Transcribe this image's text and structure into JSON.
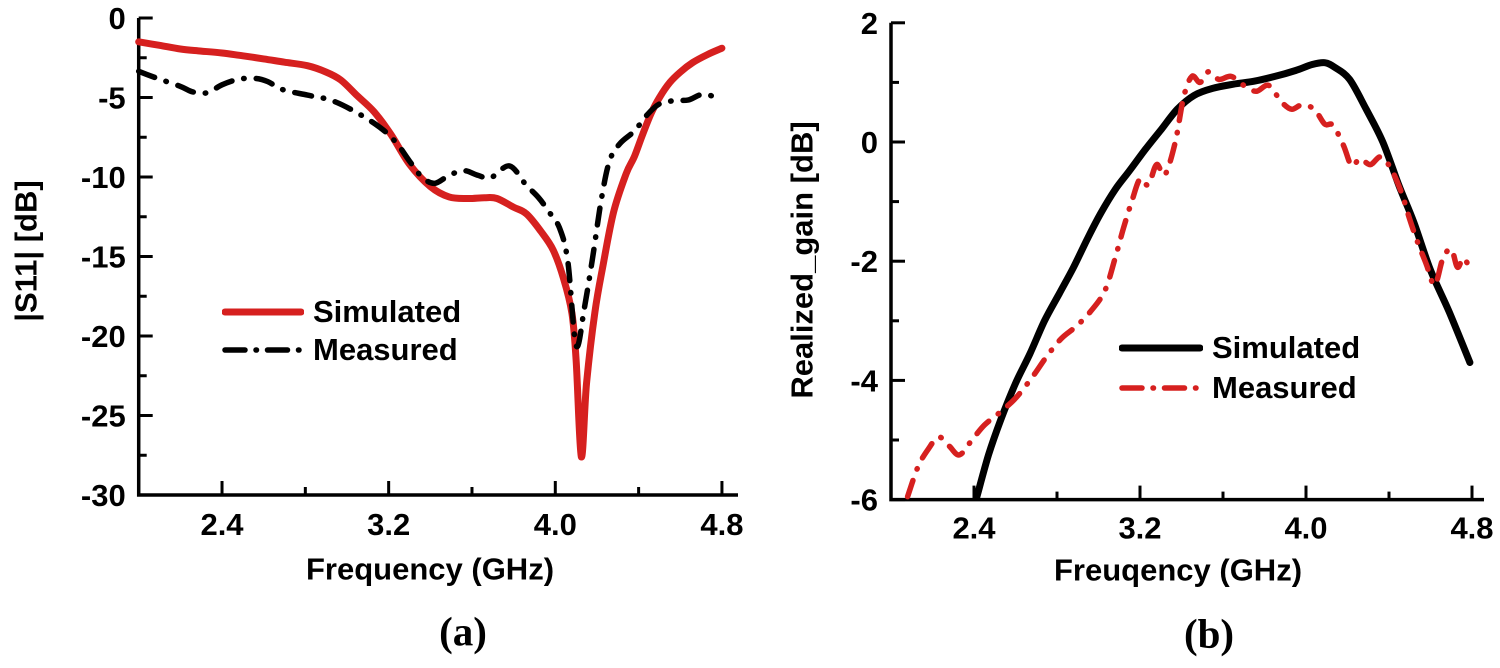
{
  "figure": {
    "background": "#ffffff",
    "caption_a": "(a)",
    "caption_b": "(b)"
  },
  "chart_data": [
    {
      "id": "a",
      "type": "line",
      "caption": "(a)",
      "title": "",
      "xlabel": "Frequency (GHz)",
      "ylabel": "|S11| [dB]",
      "xlim": [
        2.0,
        4.8
      ],
      "ylim": [
        -30,
        0
      ],
      "grid": false,
      "legend_position": "inside-center-left",
      "xticks": {
        "major": [
          2.4,
          3.2,
          4.0,
          4.8
        ],
        "labels": [
          "2.4",
          "3.2",
          "4.0",
          "4.8"
        ],
        "minor": [
          2.8,
          3.6,
          4.4
        ]
      },
      "yticks": {
        "major": [
          0,
          -5,
          -10,
          -15,
          -20,
          -25,
          -30
        ],
        "labels": [
          "0",
          "-5",
          "-10",
          "-15",
          "-20",
          "-25",
          "-30"
        ],
        "minor": [
          -2.5,
          -7.5,
          -12.5,
          -17.5,
          -22.5,
          -27.5
        ]
      },
      "series": [
        {
          "name": "Simulated",
          "color": "#d6201f",
          "line_style": "solid",
          "line_width": 7,
          "points": [
            [
              2.0,
              -1.5
            ],
            [
              2.1,
              -1.72
            ],
            [
              2.2,
              -1.95
            ],
            [
              2.3,
              -2.08
            ],
            [
              2.4,
              -2.2
            ],
            [
              2.5,
              -2.38
            ],
            [
              2.6,
              -2.57
            ],
            [
              2.7,
              -2.78
            ],
            [
              2.81,
              -3.0
            ],
            [
              2.9,
              -3.4
            ],
            [
              2.97,
              -3.9
            ],
            [
              3.05,
              -4.9
            ],
            [
              3.13,
              -5.9
            ],
            [
              3.21,
              -7.3
            ],
            [
              3.3,
              -9.2
            ],
            [
              3.4,
              -10.6
            ],
            [
              3.49,
              -11.25
            ],
            [
              3.58,
              -11.35
            ],
            [
              3.66,
              -11.3
            ],
            [
              3.72,
              -11.35
            ],
            [
              3.8,
              -11.9
            ],
            [
              3.86,
              -12.3
            ],
            [
              3.93,
              -13.4
            ],
            [
              3.99,
              -14.6
            ],
            [
              4.04,
              -16.4
            ],
            [
              4.08,
              -18.6
            ],
            [
              4.1,
              -21.5
            ],
            [
              4.125,
              -27.6
            ],
            [
              4.15,
              -23.0
            ],
            [
              4.19,
              -18.5
            ],
            [
              4.23,
              -15.5
            ],
            [
              4.28,
              -12.2
            ],
            [
              4.34,
              -9.8
            ],
            [
              4.38,
              -8.7
            ],
            [
              4.42,
              -7.3
            ],
            [
              4.46,
              -6.0
            ],
            [
              4.5,
              -5.0
            ],
            [
              4.55,
              -4.05
            ],
            [
              4.6,
              -3.4
            ],
            [
              4.66,
              -2.8
            ],
            [
              4.73,
              -2.3
            ],
            [
              4.8,
              -1.9
            ]
          ]
        },
        {
          "name": "Measured",
          "color": "#000000",
          "line_style": "dashdot",
          "line_width": 5.5,
          "points": [
            [
              2.0,
              -3.35
            ],
            [
              2.09,
              -3.8
            ],
            [
              2.2,
              -4.3
            ],
            [
              2.26,
              -4.65
            ],
            [
              2.33,
              -4.7
            ],
            [
              2.4,
              -4.2
            ],
            [
              2.48,
              -3.85
            ],
            [
              2.56,
              -3.8
            ],
            [
              2.62,
              -4.0
            ],
            [
              2.69,
              -4.5
            ],
            [
              2.81,
              -4.85
            ],
            [
              2.93,
              -5.2
            ],
            [
              3.06,
              -6.05
            ],
            [
              3.17,
              -7.0
            ],
            [
              3.24,
              -7.9
            ],
            [
              3.3,
              -9.0
            ],
            [
              3.36,
              -10.0
            ],
            [
              3.42,
              -10.4
            ],
            [
              3.49,
              -9.9
            ],
            [
              3.56,
              -9.6
            ],
            [
              3.63,
              -9.9
            ],
            [
              3.69,
              -10.05
            ],
            [
              3.78,
              -9.3
            ],
            [
              3.86,
              -10.5
            ],
            [
              3.92,
              -11.3
            ],
            [
              3.97,
              -12.2
            ],
            [
              4.02,
              -13.2
            ],
            [
              4.06,
              -15.3
            ],
            [
              4.1,
              -20.6
            ],
            [
              4.14,
              -18.2
            ],
            [
              4.18,
              -15.0
            ],
            [
              4.22,
              -11.5
            ],
            [
              4.26,
              -9.0
            ],
            [
              4.31,
              -7.9
            ],
            [
              4.38,
              -7.1
            ],
            [
              4.44,
              -6.1
            ],
            [
              4.5,
              -5.4
            ],
            [
              4.57,
              -5.2
            ],
            [
              4.64,
              -5.15
            ],
            [
              4.71,
              -4.8
            ],
            [
              4.8,
              -5.1
            ]
          ]
        }
      ]
    },
    {
      "id": "b",
      "type": "line",
      "caption": "(b)",
      "title": "",
      "xlabel": "Freuqency (GHz)",
      "ylabel": "Realized_gain [dB]",
      "xlim": [
        2.0,
        4.8
      ],
      "ylim": [
        -6,
        2
      ],
      "grid": false,
      "legend_position": "inside-center-right",
      "xticks": {
        "major": [
          2.4,
          3.2,
          4.0,
          4.8
        ],
        "labels": [
          "2.4",
          "3.2",
          "4.0",
          "4.8"
        ],
        "minor": [
          2.8,
          3.6,
          4.4
        ]
      },
      "yticks": {
        "major": [
          2,
          0,
          -2,
          -4,
          -6
        ],
        "labels": [
          "2",
          "0",
          "-2",
          "-4",
          "-6"
        ],
        "minor": [
          1,
          -1,
          -3,
          -5
        ]
      },
      "series": [
        {
          "name": "Simulated",
          "color": "#000000",
          "line_style": "solid",
          "line_width": 7,
          "points": [
            [
              2.41,
              -6.0
            ],
            [
              2.47,
              -5.25
            ],
            [
              2.53,
              -4.65
            ],
            [
              2.6,
              -4.05
            ],
            [
              2.67,
              -3.55
            ],
            [
              2.74,
              -3.0
            ],
            [
              2.81,
              -2.55
            ],
            [
              2.88,
              -2.1
            ],
            [
              2.95,
              -1.6
            ],
            [
              3.01,
              -1.2
            ],
            [
              3.08,
              -0.8
            ],
            [
              3.15,
              -0.48
            ],
            [
              3.22,
              -0.15
            ],
            [
              3.3,
              0.2
            ],
            [
              3.38,
              0.55
            ],
            [
              3.46,
              0.78
            ],
            [
              3.55,
              0.9
            ],
            [
              3.65,
              0.97
            ],
            [
              3.75,
              1.02
            ],
            [
              3.85,
              1.1
            ],
            [
              3.95,
              1.2
            ],
            [
              4.03,
              1.3
            ],
            [
              4.09,
              1.33
            ],
            [
              4.14,
              1.25
            ],
            [
              4.21,
              1.05
            ],
            [
              4.29,
              0.55
            ],
            [
              4.37,
              0.0
            ],
            [
              4.45,
              -0.75
            ],
            [
              4.52,
              -1.35
            ],
            [
              4.6,
              -2.15
            ],
            [
              4.69,
              -2.85
            ],
            [
              4.79,
              -3.7
            ]
          ]
        },
        {
          "name": "Measured",
          "color": "#d6201f",
          "line_style": "dashdot",
          "line_width": 5.5,
          "points": [
            [
              2.08,
              -5.95
            ],
            [
              2.13,
              -5.45
            ],
            [
              2.18,
              -5.15
            ],
            [
              2.23,
              -4.95
            ],
            [
              2.28,
              -5.1
            ],
            [
              2.33,
              -5.25
            ],
            [
              2.39,
              -5.0
            ],
            [
              2.45,
              -4.75
            ],
            [
              2.52,
              -4.55
            ],
            [
              2.6,
              -4.3
            ],
            [
              2.68,
              -3.95
            ],
            [
              2.75,
              -3.6
            ],
            [
              2.82,
              -3.3
            ],
            [
              2.89,
              -3.1
            ],
            [
              2.96,
              -2.85
            ],
            [
              3.03,
              -2.5
            ],
            [
              3.08,
              -1.95
            ],
            [
              3.12,
              -1.45
            ],
            [
              3.16,
              -1.0
            ],
            [
              3.2,
              -0.62
            ],
            [
              3.24,
              -0.72
            ],
            [
              3.28,
              -0.38
            ],
            [
              3.32,
              -0.55
            ],
            [
              3.37,
              0.0
            ],
            [
              3.41,
              0.75
            ],
            [
              3.45,
              1.1
            ],
            [
              3.49,
              1.0
            ],
            [
              3.53,
              1.18
            ],
            [
              3.58,
              1.05
            ],
            [
              3.64,
              1.1
            ],
            [
              3.7,
              0.95
            ],
            [
              3.76,
              0.85
            ],
            [
              3.82,
              0.95
            ],
            [
              3.88,
              0.68
            ],
            [
              3.93,
              0.55
            ],
            [
              3.98,
              0.62
            ],
            [
              4.04,
              0.55
            ],
            [
              4.09,
              0.3
            ],
            [
              4.13,
              0.28
            ],
            [
              4.18,
              -0.05
            ],
            [
              4.22,
              -0.4
            ],
            [
              4.26,
              -0.28
            ],
            [
              4.31,
              -0.38
            ],
            [
              4.36,
              -0.25
            ],
            [
              4.41,
              -0.45
            ],
            [
              4.46,
              -0.85
            ],
            [
              4.5,
              -1.3
            ],
            [
              4.54,
              -1.7
            ],
            [
              4.58,
              -2.05
            ],
            [
              4.62,
              -2.4
            ],
            [
              4.66,
              -1.95
            ],
            [
              4.7,
              -1.8
            ],
            [
              4.73,
              -2.1
            ],
            [
              4.76,
              -1.95
            ],
            [
              4.8,
              -2.2
            ]
          ]
        }
      ]
    }
  ]
}
